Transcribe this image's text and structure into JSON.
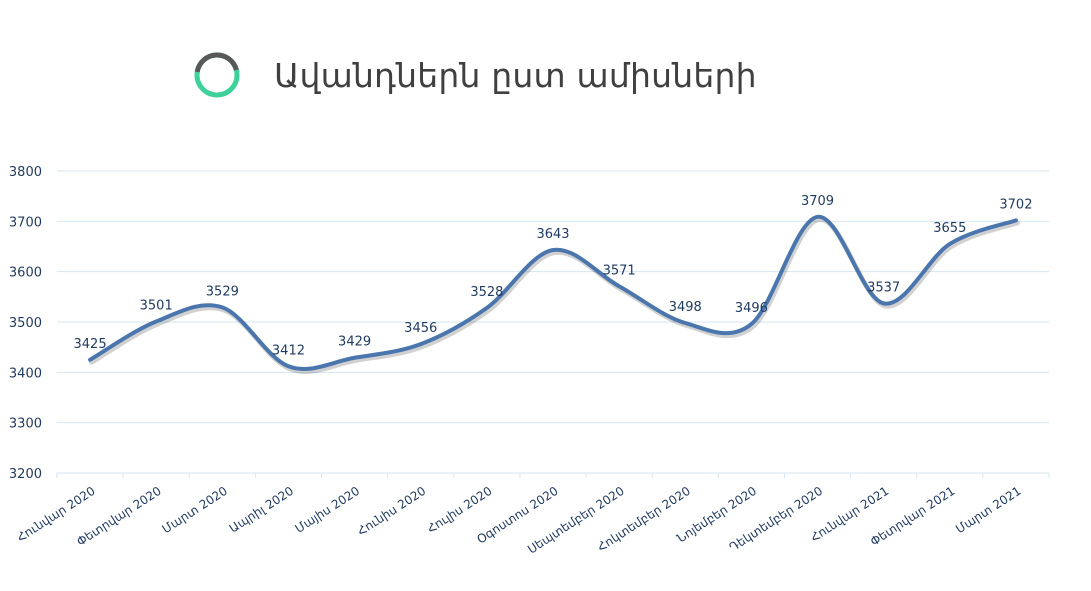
{
  "chart_data": {
    "type": "line",
    "title": "Ավանդներն ըստ ամիսների",
    "categories": [
      "Հունվար 2020",
      "Փետրվար 2020",
      "Մարտ 2020",
      "Ապրիլ 2020",
      "Մայիս 2020",
      "Հունիս 2020",
      "Հուլիս 2020",
      "Օգոստոս 2020",
      "Սեպտեմբեր 2020",
      "Հոկտեմբեր 2020",
      "Նոյեմբեր 2020",
      "Դեկտեմբեր 2020",
      "Հունվար 2021",
      "Փետրվար 2021",
      "Մարտ 2021"
    ],
    "values": [
      3425,
      3501,
      3529,
      3412,
      3429,
      3456,
      3528,
      3643,
      3571,
      3498,
      3496,
      3709,
      3537,
      3655,
      3702
    ],
    "data_labels": [
      "3425",
      "3501",
      "3529",
      "3412",
      "3429",
      "3456",
      "3528",
      "3643",
      "3571",
      "3498",
      "3496",
      "3709",
      "3537",
      "3655",
      "3702"
    ],
    "ylim": [
      3200,
      3800
    ],
    "yticks": [
      "3200",
      "3300",
      "3400",
      "3500",
      "3600",
      "3700",
      "3800"
    ],
    "grid": true,
    "line_color": "#4a76ad",
    "grid_color": "#d6e6f2",
    "icon_colors": {
      "ring_dark": "#595959",
      "ring_accent": "#3fd19a"
    }
  }
}
